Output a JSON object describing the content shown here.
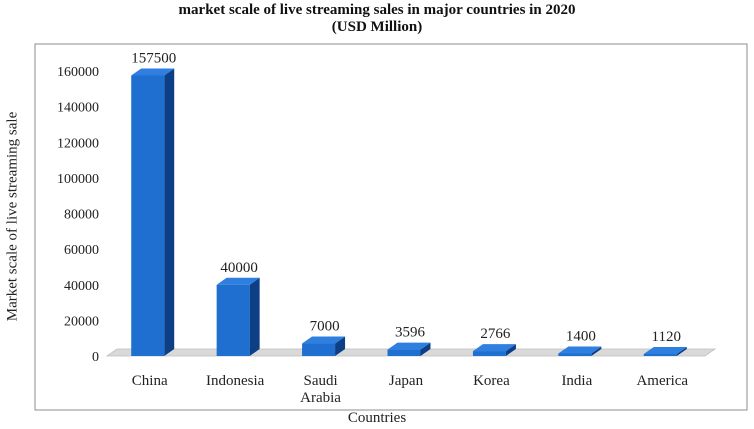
{
  "chart_data": {
    "type": "bar",
    "title": "market scale of live streaming sales in major countries in 2020",
    "subtitle": "(USD Million)",
    "xlabel": "Countries",
    "ylabel": "Market scale of live streaming sale",
    "categories": [
      "China",
      "Indonesia",
      "Saudi Arabia",
      "Japan",
      "Korea",
      "India",
      "America"
    ],
    "category_lines": [
      [
        "China"
      ],
      [
        "Indonesia"
      ],
      [
        "Saudi",
        "Arabia"
      ],
      [
        "Japan"
      ],
      [
        "Korea"
      ],
      [
        "India"
      ],
      [
        "America"
      ]
    ],
    "values": [
      157500,
      40000,
      7000,
      3596,
      2766,
      1400,
      1120
    ],
    "ylim": [
      0,
      160000
    ],
    "yticks": [
      0,
      20000,
      40000,
      60000,
      80000,
      100000,
      120000,
      140000,
      160000
    ],
    "grid": false,
    "style": "3d-column",
    "colors": {
      "front": "#1f6fd1",
      "side": "#0d3f86",
      "top": "#2f7fe0",
      "floor": "#d9d9d9",
      "frame": "#8c8c8c"
    }
  }
}
